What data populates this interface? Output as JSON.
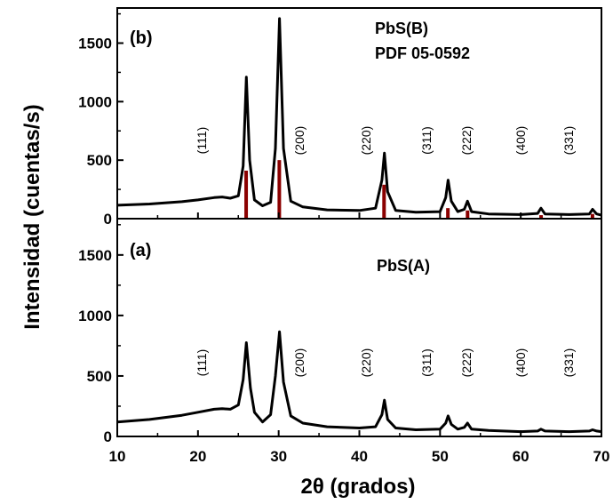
{
  "chart_data": {
    "type": "line",
    "xlabel": "2θ (grados)",
    "ylabel": "Intensidad (cuentas/s)",
    "xlim": [
      10,
      70
    ],
    "xticks": [
      10,
      20,
      30,
      40,
      50,
      60,
      70
    ],
    "grid": false,
    "panels": [
      {
        "label": "(b)",
        "text": [
          "PbS(B)",
          "PDF 05-0592"
        ],
        "ylim": [
          0,
          1800
        ],
        "yticks": [
          0,
          500,
          1000,
          1500
        ],
        "series": [
          {
            "x": [
              10,
              14,
              18,
              20,
              22,
              23,
              24,
              25,
              25.6,
              26.0,
              26.4,
              27,
              28,
              29,
              29.6,
              30.1,
              30.6,
              31.5,
              33,
              36,
              40,
              42,
              42.8,
              43.1,
              43.5,
              44.5,
              47,
              50,
              50.7,
              51.0,
              51.4,
              52.2,
              53.0,
              53.4,
              53.9,
              56,
              60,
              62.1,
              62.5,
              63,
              66,
              68.5,
              68.9,
              69.4,
              70
            ],
            "values": [
              115,
              125,
              145,
              160,
              180,
              185,
              175,
              195,
              450,
              1210,
              500,
              160,
              110,
              140,
              600,
              1710,
              600,
              150,
              100,
              75,
              70,
              90,
              330,
              560,
              230,
              70,
              55,
              60,
              180,
              330,
              150,
              60,
              80,
              150,
              60,
              40,
              35,
              45,
              90,
              40,
              35,
              40,
              80,
              40,
              30
            ]
          }
        ],
        "reference_lines": {
          "x": [
            25.97,
            30.08,
            43.06,
            50.97,
            53.41,
            62.52,
            68.89
          ],
          "values": [
            410,
            500,
            290,
            90,
            70,
            30,
            40
          ]
        },
        "annotations": [
          "(111)",
          "(200)",
          "(220)",
          "(311)",
          "(222)",
          "(400)",
          "(331)"
        ]
      },
      {
        "label": "(a)",
        "text": [
          "PbS(A)"
        ],
        "ylim": [
          0,
          1800
        ],
        "yticks": [
          0,
          500,
          1000,
          1500
        ],
        "series": [
          {
            "x": [
              10,
              14,
              18,
              20,
              22,
              23,
              24,
              25,
              25.6,
              26.0,
              26.5,
              27,
              28,
              29,
              29.6,
              30.1,
              30.6,
              31.5,
              33,
              36,
              40,
              42,
              42.8,
              43.1,
              43.5,
              44.5,
              47,
              50,
              50.7,
              51.0,
              51.4,
              52.2,
              53.0,
              53.4,
              53.9,
              56,
              60,
              62.1,
              62.5,
              63,
              66,
              68.5,
              68.9,
              69.4,
              70
            ],
            "values": [
              120,
              140,
              175,
              200,
              225,
              230,
              225,
              260,
              470,
              775,
              400,
              200,
              120,
              180,
              500,
              865,
              450,
              170,
              110,
              80,
              70,
              80,
              180,
              300,
              140,
              70,
              55,
              60,
              110,
              170,
              100,
              60,
              75,
              110,
              60,
              50,
              40,
              45,
              60,
              45,
              40,
              45,
              55,
              45,
              40
            ]
          }
        ],
        "annotations": [
          "(111)",
          "(200)",
          "(220)",
          "(311)",
          "(222)",
          "(400)",
          "(331)"
        ]
      }
    ]
  }
}
